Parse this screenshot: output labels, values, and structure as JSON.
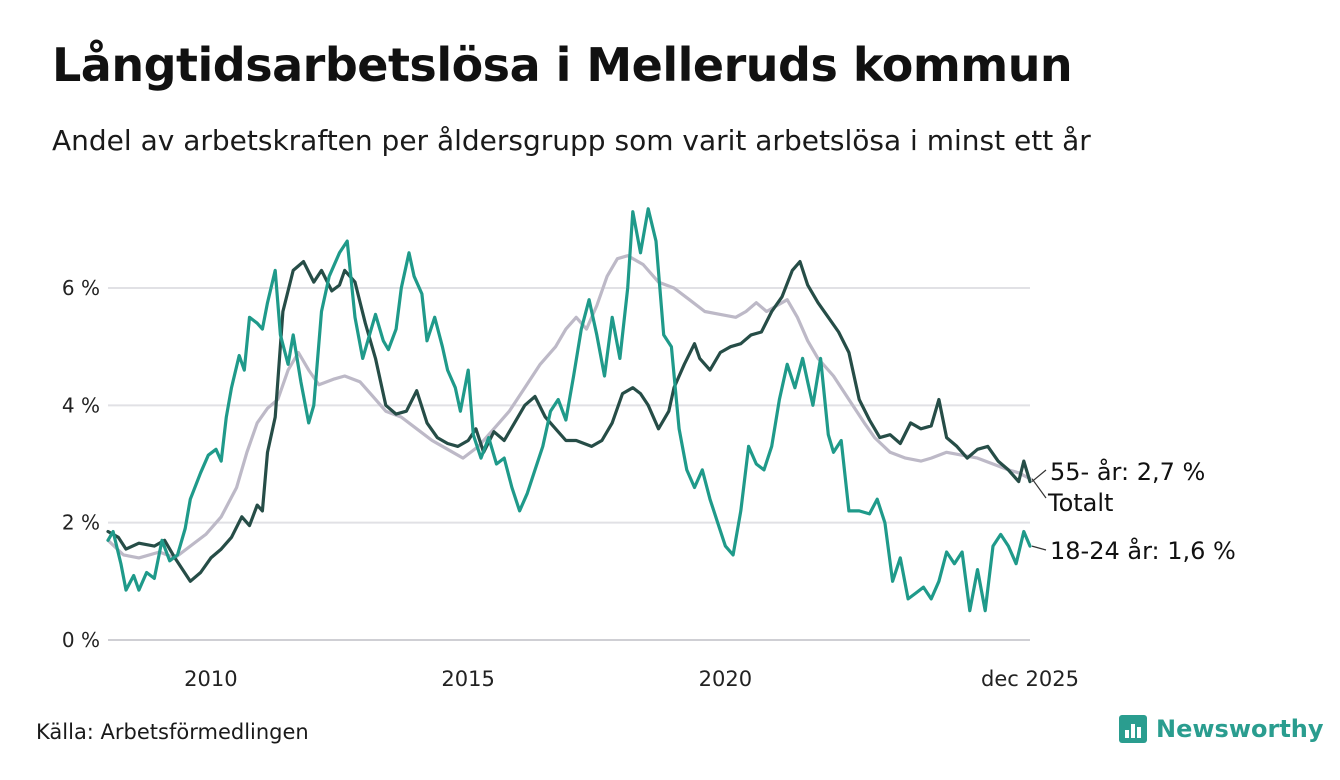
{
  "title": "Långtidsarbetslösa i Melleruds kommun",
  "subtitle": "Andel av arbetskraften per åldersgrupp som varit arbetslösa i minst ett år",
  "source": "Källa: Arbetsförmedlingen",
  "brand": {
    "name": "Newsworthy",
    "icon": "newsworthy-logo-icon",
    "color": "#2a9d8f"
  },
  "chart_data": {
    "type": "line",
    "title": "Långtidsarbetslösa i Melleruds kommun",
    "xlabel": "",
    "ylabel": "",
    "xlim": [
      2008.0,
      2025.92
    ],
    "ylim": [
      0,
      7.5
    ],
    "grid": true,
    "y_ticks": [
      {
        "value": 0,
        "label": "0 %"
      },
      {
        "value": 2,
        "label": "2 %"
      },
      {
        "value": 4,
        "label": "4 %"
      },
      {
        "value": 6,
        "label": "6 %"
      }
    ],
    "x_ticks": [
      {
        "value": 2010,
        "label": "2010"
      },
      {
        "value": 2015,
        "label": "2015"
      },
      {
        "value": 2020,
        "label": "2020"
      },
      {
        "value": 2025.92,
        "label": "dec 2025"
      }
    ],
    "series": [
      {
        "name": "Totalt",
        "color": "#bdb9c7",
        "label": "Totalt",
        "points": [
          [
            2008.0,
            1.7
          ],
          [
            2008.3,
            1.45
          ],
          [
            2008.6,
            1.4
          ],
          [
            2009.0,
            1.5
          ],
          [
            2009.3,
            1.4
          ],
          [
            2009.6,
            1.6
          ],
          [
            2009.9,
            1.8
          ],
          [
            2010.2,
            2.1
          ],
          [
            2010.5,
            2.6
          ],
          [
            2010.7,
            3.2
          ],
          [
            2010.9,
            3.7
          ],
          [
            2011.1,
            3.95
          ],
          [
            2011.3,
            4.1
          ],
          [
            2011.5,
            4.6
          ],
          [
            2011.7,
            4.9
          ],
          [
            2011.9,
            4.6
          ],
          [
            2012.1,
            4.35
          ],
          [
            2012.4,
            4.45
          ],
          [
            2012.6,
            4.5
          ],
          [
            2012.9,
            4.4
          ],
          [
            2013.1,
            4.2
          ],
          [
            2013.4,
            3.9
          ],
          [
            2013.7,
            3.8
          ],
          [
            2014.0,
            3.6
          ],
          [
            2014.3,
            3.4
          ],
          [
            2014.6,
            3.25
          ],
          [
            2014.9,
            3.1
          ],
          [
            2015.2,
            3.3
          ],
          [
            2015.5,
            3.6
          ],
          [
            2015.8,
            3.9
          ],
          [
            2016.1,
            4.3
          ],
          [
            2016.4,
            4.7
          ],
          [
            2016.7,
            5.0
          ],
          [
            2016.9,
            5.3
          ],
          [
            2017.1,
            5.5
          ],
          [
            2017.3,
            5.3
          ],
          [
            2017.5,
            5.7
          ],
          [
            2017.7,
            6.2
          ],
          [
            2017.9,
            6.5
          ],
          [
            2018.1,
            6.55
          ],
          [
            2018.4,
            6.4
          ],
          [
            2018.7,
            6.1
          ],
          [
            2019.0,
            6.0
          ],
          [
            2019.3,
            5.8
          ],
          [
            2019.6,
            5.6
          ],
          [
            2019.9,
            5.55
          ],
          [
            2020.2,
            5.5
          ],
          [
            2020.4,
            5.6
          ],
          [
            2020.6,
            5.75
          ],
          [
            2020.8,
            5.6
          ],
          [
            2021.0,
            5.7
          ],
          [
            2021.2,
            5.8
          ],
          [
            2021.4,
            5.5
          ],
          [
            2021.6,
            5.1
          ],
          [
            2021.8,
            4.8
          ],
          [
            2022.1,
            4.5
          ],
          [
            2022.4,
            4.1
          ],
          [
            2022.7,
            3.7
          ],
          [
            2022.9,
            3.45
          ],
          [
            2023.2,
            3.2
          ],
          [
            2023.5,
            3.1
          ],
          [
            2023.8,
            3.05
          ],
          [
            2024.0,
            3.1
          ],
          [
            2024.3,
            3.2
          ],
          [
            2024.6,
            3.15
          ],
          [
            2024.9,
            3.1
          ],
          [
            2025.2,
            3.0
          ],
          [
            2025.5,
            2.9
          ],
          [
            2025.7,
            2.85
          ],
          [
            2025.92,
            2.75
          ]
        ]
      },
      {
        "name": "55- år",
        "color": "#264d47",
        "label": "55- år: 2,7 %",
        "points": [
          [
            2008.0,
            1.85
          ],
          [
            2008.2,
            1.75
          ],
          [
            2008.35,
            1.55
          ],
          [
            2008.6,
            1.65
          ],
          [
            2008.9,
            1.6
          ],
          [
            2009.1,
            1.7
          ],
          [
            2009.3,
            1.4
          ],
          [
            2009.6,
            1.0
          ],
          [
            2009.8,
            1.15
          ],
          [
            2010.0,
            1.4
          ],
          [
            2010.2,
            1.55
          ],
          [
            2010.4,
            1.75
          ],
          [
            2010.6,
            2.1
          ],
          [
            2010.75,
            1.95
          ],
          [
            2010.9,
            2.3
          ],
          [
            2011.0,
            2.2
          ],
          [
            2011.1,
            3.2
          ],
          [
            2011.25,
            3.8
          ],
          [
            2011.4,
            5.6
          ],
          [
            2011.6,
            6.3
          ],
          [
            2011.8,
            6.45
          ],
          [
            2012.0,
            6.1
          ],
          [
            2012.15,
            6.3
          ],
          [
            2012.35,
            5.95
          ],
          [
            2012.5,
            6.05
          ],
          [
            2012.6,
            6.3
          ],
          [
            2012.8,
            6.1
          ],
          [
            2013.0,
            5.4
          ],
          [
            2013.2,
            4.8
          ],
          [
            2013.4,
            4.0
          ],
          [
            2013.6,
            3.85
          ],
          [
            2013.8,
            3.9
          ],
          [
            2014.0,
            4.25
          ],
          [
            2014.2,
            3.7
          ],
          [
            2014.4,
            3.45
          ],
          [
            2014.6,
            3.35
          ],
          [
            2014.8,
            3.3
          ],
          [
            2015.0,
            3.4
          ],
          [
            2015.15,
            3.6
          ],
          [
            2015.3,
            3.2
          ],
          [
            2015.5,
            3.55
          ],
          [
            2015.7,
            3.4
          ],
          [
            2015.9,
            3.7
          ],
          [
            2016.1,
            4.0
          ],
          [
            2016.3,
            4.15
          ],
          [
            2016.5,
            3.8
          ],
          [
            2016.7,
            3.6
          ],
          [
            2016.9,
            3.4
          ],
          [
            2017.1,
            3.4
          ],
          [
            2017.4,
            3.3
          ],
          [
            2017.6,
            3.4
          ],
          [
            2017.8,
            3.7
          ],
          [
            2018.0,
            4.2
          ],
          [
            2018.2,
            4.3
          ],
          [
            2018.35,
            4.2
          ],
          [
            2018.5,
            4.0
          ],
          [
            2018.7,
            3.6
          ],
          [
            2018.9,
            3.9
          ],
          [
            2019.0,
            4.3
          ],
          [
            2019.2,
            4.7
          ],
          [
            2019.4,
            5.05
          ],
          [
            2019.5,
            4.8
          ],
          [
            2019.7,
            4.6
          ],
          [
            2019.9,
            4.9
          ],
          [
            2020.1,
            5.0
          ],
          [
            2020.3,
            5.05
          ],
          [
            2020.5,
            5.2
          ],
          [
            2020.7,
            5.25
          ],
          [
            2020.9,
            5.6
          ],
          [
            2021.1,
            5.85
          ],
          [
            2021.3,
            6.3
          ],
          [
            2021.45,
            6.45
          ],
          [
            2021.6,
            6.05
          ],
          [
            2021.8,
            5.75
          ],
          [
            2022.0,
            5.5
          ],
          [
            2022.2,
            5.25
          ],
          [
            2022.4,
            4.9
          ],
          [
            2022.6,
            4.1
          ],
          [
            2022.8,
            3.75
          ],
          [
            2023.0,
            3.45
          ],
          [
            2023.2,
            3.5
          ],
          [
            2023.4,
            3.35
          ],
          [
            2023.6,
            3.7
          ],
          [
            2023.8,
            3.6
          ],
          [
            2024.0,
            3.65
          ],
          [
            2024.15,
            4.1
          ],
          [
            2024.3,
            3.45
          ],
          [
            2024.5,
            3.3
          ],
          [
            2024.7,
            3.1
          ],
          [
            2024.9,
            3.25
          ],
          [
            2025.1,
            3.3
          ],
          [
            2025.3,
            3.05
          ],
          [
            2025.5,
            2.9
          ],
          [
            2025.7,
            2.7
          ],
          [
            2025.8,
            3.05
          ],
          [
            2025.92,
            2.7
          ]
        ]
      },
      {
        "name": "18-24 år",
        "color": "#1f9a8a",
        "label": "18-24 år: 1,6 %",
        "points": [
          [
            2008.0,
            1.7
          ],
          [
            2008.1,
            1.85
          ],
          [
            2008.25,
            1.3
          ],
          [
            2008.35,
            0.85
          ],
          [
            2008.5,
            1.1
          ],
          [
            2008.6,
            0.85
          ],
          [
            2008.75,
            1.15
          ],
          [
            2008.9,
            1.05
          ],
          [
            2009.05,
            1.7
          ],
          [
            2009.2,
            1.35
          ],
          [
            2009.35,
            1.45
          ],
          [
            2009.5,
            1.9
          ],
          [
            2009.6,
            2.4
          ],
          [
            2009.8,
            2.85
          ],
          [
            2009.95,
            3.15
          ],
          [
            2010.1,
            3.25
          ],
          [
            2010.2,
            3.05
          ],
          [
            2010.3,
            3.8
          ],
          [
            2010.4,
            4.3
          ],
          [
            2010.55,
            4.85
          ],
          [
            2010.65,
            4.6
          ],
          [
            2010.75,
            5.5
          ],
          [
            2010.9,
            5.4
          ],
          [
            2011.0,
            5.3
          ],
          [
            2011.1,
            5.75
          ],
          [
            2011.25,
            6.3
          ],
          [
            2011.35,
            5.2
          ],
          [
            2011.5,
            4.7
          ],
          [
            2011.6,
            5.2
          ],
          [
            2011.75,
            4.4
          ],
          [
            2011.9,
            3.7
          ],
          [
            2012.0,
            4.0
          ],
          [
            2012.15,
            5.6
          ],
          [
            2012.3,
            6.2
          ],
          [
            2012.5,
            6.6
          ],
          [
            2012.65,
            6.8
          ],
          [
            2012.8,
            5.5
          ],
          [
            2012.95,
            4.8
          ],
          [
            2013.05,
            5.1
          ],
          [
            2013.2,
            5.55
          ],
          [
            2013.35,
            5.1
          ],
          [
            2013.45,
            4.95
          ],
          [
            2013.6,
            5.3
          ],
          [
            2013.7,
            6.0
          ],
          [
            2013.85,
            6.6
          ],
          [
            2013.95,
            6.2
          ],
          [
            2014.1,
            5.9
          ],
          [
            2014.2,
            5.1
          ],
          [
            2014.35,
            5.5
          ],
          [
            2014.5,
            5.0
          ],
          [
            2014.6,
            4.6
          ],
          [
            2014.75,
            4.3
          ],
          [
            2014.85,
            3.9
          ],
          [
            2015.0,
            4.6
          ],
          [
            2015.1,
            3.5
          ],
          [
            2015.25,
            3.1
          ],
          [
            2015.4,
            3.45
          ],
          [
            2015.55,
            3.0
          ],
          [
            2015.7,
            3.1
          ],
          [
            2015.85,
            2.6
          ],
          [
            2016.0,
            2.2
          ],
          [
            2016.15,
            2.5
          ],
          [
            2016.3,
            2.9
          ],
          [
            2016.45,
            3.3
          ],
          [
            2016.6,
            3.9
          ],
          [
            2016.75,
            4.1
          ],
          [
            2016.9,
            3.75
          ],
          [
            2017.05,
            4.5
          ],
          [
            2017.2,
            5.3
          ],
          [
            2017.35,
            5.8
          ],
          [
            2017.5,
            5.2
          ],
          [
            2017.65,
            4.5
          ],
          [
            2017.8,
            5.5
          ],
          [
            2017.95,
            4.8
          ],
          [
            2018.1,
            6.0
          ],
          [
            2018.2,
            7.3
          ],
          [
            2018.35,
            6.6
          ],
          [
            2018.5,
            7.35
          ],
          [
            2018.65,
            6.8
          ],
          [
            2018.8,
            5.2
          ],
          [
            2018.95,
            5.0
          ],
          [
            2019.1,
            3.6
          ],
          [
            2019.25,
            2.9
          ],
          [
            2019.4,
            2.6
          ],
          [
            2019.55,
            2.9
          ],
          [
            2019.7,
            2.4
          ],
          [
            2019.85,
            2.0
          ],
          [
            2020.0,
            1.6
          ],
          [
            2020.15,
            1.45
          ],
          [
            2020.3,
            2.2
          ],
          [
            2020.45,
            3.3
          ],
          [
            2020.6,
            3.0
          ],
          [
            2020.75,
            2.9
          ],
          [
            2020.9,
            3.3
          ],
          [
            2021.05,
            4.1
          ],
          [
            2021.2,
            4.7
          ],
          [
            2021.35,
            4.3
          ],
          [
            2021.5,
            4.8
          ],
          [
            2021.6,
            4.4
          ],
          [
            2021.7,
            4.0
          ],
          [
            2021.85,
            4.8
          ],
          [
            2022.0,
            3.5
          ],
          [
            2022.1,
            3.2
          ],
          [
            2022.25,
            3.4
          ],
          [
            2022.4,
            2.2
          ],
          [
            2022.6,
            2.2
          ],
          [
            2022.8,
            2.15
          ],
          [
            2022.95,
            2.4
          ],
          [
            2023.1,
            2.0
          ],
          [
            2023.25,
            1.0
          ],
          [
            2023.4,
            1.4
          ],
          [
            2023.55,
            0.7
          ],
          [
            2023.7,
            0.8
          ],
          [
            2023.85,
            0.9
          ],
          [
            2024.0,
            0.7
          ],
          [
            2024.15,
            1.0
          ],
          [
            2024.3,
            1.5
          ],
          [
            2024.45,
            1.3
          ],
          [
            2024.6,
            1.5
          ],
          [
            2024.75,
            0.5
          ],
          [
            2024.9,
            1.2
          ],
          [
            2025.05,
            0.5
          ],
          [
            2025.2,
            1.6
          ],
          [
            2025.35,
            1.8
          ],
          [
            2025.5,
            1.6
          ],
          [
            2025.65,
            1.3
          ],
          [
            2025.8,
            1.85
          ],
          [
            2025.92,
            1.6
          ]
        ]
      }
    ]
  }
}
